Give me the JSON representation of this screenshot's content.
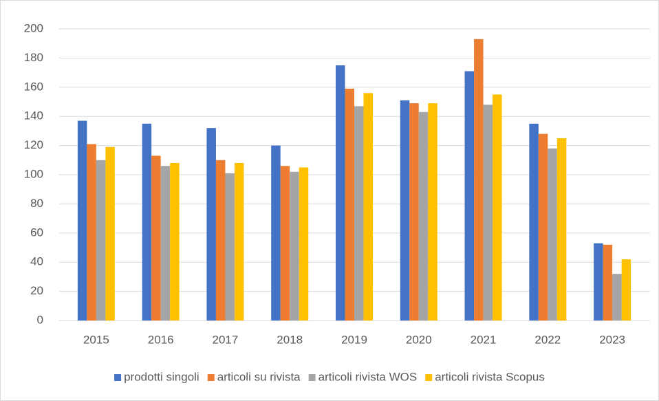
{
  "chart_data": {
    "type": "bar",
    "categories": [
      "2015",
      "2016",
      "2017",
      "2018",
      "2019",
      "2020",
      "2021",
      "2022",
      "2023"
    ],
    "series": [
      {
        "name": "prodotti singoli",
        "color": "#4472c4",
        "values": [
          137,
          135,
          132,
          120,
          175,
          151,
          171,
          135,
          53
        ]
      },
      {
        "name": "articoli su rivista",
        "color": "#ed7d31",
        "values": [
          121,
          113,
          110,
          106,
          159,
          149,
          193,
          128,
          52
        ]
      },
      {
        "name": "articoli rivista WOS",
        "color": "#a5a5a5",
        "values": [
          110,
          106,
          101,
          102,
          147,
          143,
          148,
          118,
          32
        ]
      },
      {
        "name": "articoli rivista Scopus",
        "color": "#ffc000",
        "values": [
          119,
          108,
          108,
          105,
          156,
          149,
          155,
          125,
          42
        ]
      }
    ],
    "ylim": [
      0,
      200
    ],
    "yticks": [
      0,
      20,
      40,
      60,
      80,
      100,
      120,
      140,
      160,
      180,
      200
    ],
    "grid": true,
    "legend": "bottom"
  }
}
